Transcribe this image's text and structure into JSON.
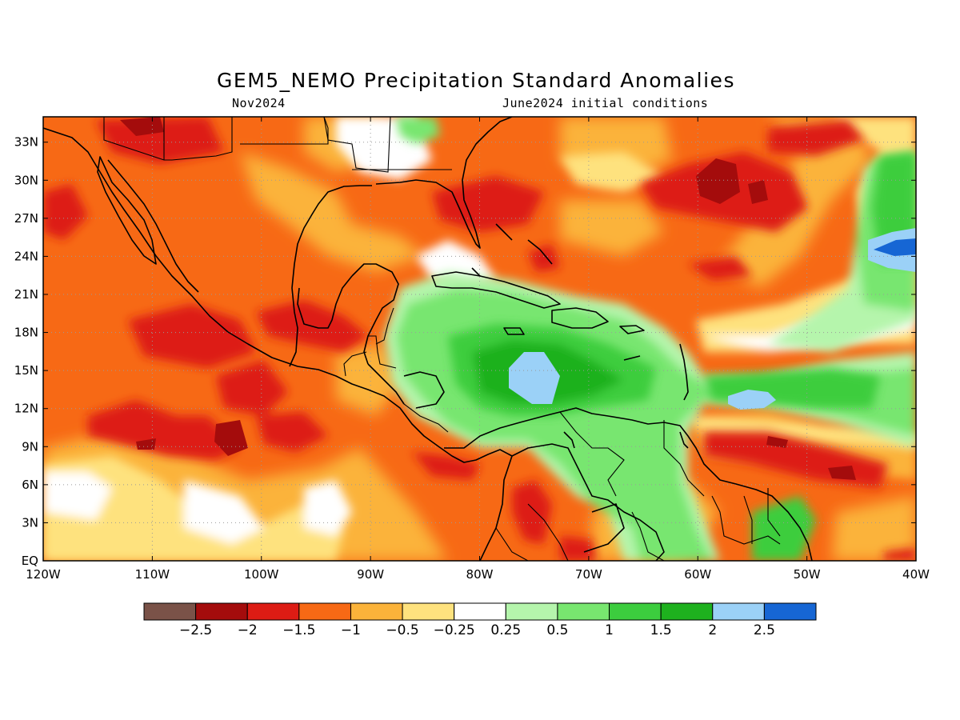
{
  "title": "GEM5_NEMO Precipitation Standard Anomalies",
  "subtitle_left": "Nov2024",
  "subtitle_right": "June2024 initial conditions",
  "map": {
    "lon_range": [
      -120,
      -40
    ],
    "lat_range": [
      0,
      35
    ],
    "lat_ticks": [
      {
        "value": 33,
        "label": "33N"
      },
      {
        "value": 30,
        "label": "30N"
      },
      {
        "value": 27,
        "label": "27N"
      },
      {
        "value": 24,
        "label": "24N"
      },
      {
        "value": 21,
        "label": "21N"
      },
      {
        "value": 18,
        "label": "18N"
      },
      {
        "value": 15,
        "label": "15N"
      },
      {
        "value": 12,
        "label": "12N"
      },
      {
        "value": 9,
        "label": "9N"
      },
      {
        "value": 6,
        "label": "6N"
      },
      {
        "value": 3,
        "label": "3N"
      },
      {
        "value": 0,
        "label": "EQ"
      }
    ],
    "lon_ticks": [
      {
        "value": -120,
        "label": "120W"
      },
      {
        "value": -110,
        "label": "110W"
      },
      {
        "value": -100,
        "label": "100W"
      },
      {
        "value": -90,
        "label": "90W"
      },
      {
        "value": -80,
        "label": "80W"
      },
      {
        "value": -70,
        "label": "70W"
      },
      {
        "value": -60,
        "label": "60W"
      },
      {
        "value": -50,
        "label": "50W"
      },
      {
        "value": -40,
        "label": "40W"
      }
    ]
  },
  "colorbar": {
    "colors": [
      "#7a5248",
      "#a40c0c",
      "#dd1c14",
      "#f76915",
      "#fbb33a",
      "#fee27e",
      "#ffffff",
      "#b5f5ac",
      "#78e66f",
      "#3ccd3e",
      "#1eb11e",
      "#9bd1f7",
      "#1666d4"
    ],
    "labels": [
      "-2.5",
      "-2",
      "-1.5",
      "-1",
      "-0.5",
      "-0.25",
      "0.25",
      "0.5",
      "1",
      "1.5",
      "2",
      "2.5"
    ]
  },
  "anomaly_regions": [
    {
      "category": "wet",
      "level": 1.0,
      "lon": [
        -85,
        -74
      ],
      "lat": [
        5,
        20
      ],
      "color": "#78e66f"
    },
    {
      "category": "wet",
      "level": 1.5,
      "lon": [
        -81,
        -68
      ],
      "lat": [
        11,
        19
      ],
      "color": "#3ccd3e"
    },
    {
      "category": "wet",
      "level": 2.5,
      "lon": [
        -76,
        -73
      ],
      "lat": [
        13,
        15.5
      ],
      "color": "#9bd1f7"
    },
    {
      "category": "wet",
      "level": 1.0,
      "lon": [
        -57,
        -40
      ],
      "lat": [
        11,
        17
      ],
      "color": "#78e66f"
    },
    {
      "category": "wet",
      "level": 2.5,
      "lon": [
        -57,
        -53
      ],
      "lat": [
        12,
        13.5
      ],
      "color": "#9bd1f7"
    },
    {
      "category": "wet",
      "level": 1.0,
      "lon": [
        -49,
        -40
      ],
      "lat": [
        17,
        31
      ],
      "color": "#78e66f"
    },
    {
      "category": "wet",
      "level": 3.0,
      "lon": [
        -44,
        -40
      ],
      "lat": [
        23,
        26
      ],
      "color": "#1666d4"
    },
    {
      "category": "wet",
      "level": 1.0,
      "lon": [
        -63,
        -50
      ],
      "lat": [
        0,
        6
      ],
      "color": "#78e66f"
    },
    {
      "category": "dry",
      "level": -1.5,
      "lon": [
        -68,
        -55
      ],
      "lat": [
        25,
        31
      ],
      "color": "#dd1c14"
    },
    {
      "category": "dry",
      "level": -2.0,
      "lon": [
        -60,
        -56
      ],
      "lat": [
        28,
        30
      ],
      "color": "#a40c0c"
    },
    {
      "category": "dry",
      "level": -1.5,
      "lon": [
        -60,
        -42
      ],
      "lat": [
        6,
        10
      ],
      "color": "#dd1c14"
    },
    {
      "category": "dry",
      "level": -1.5,
      "lon": [
        -110,
        -100
      ],
      "lat": [
        8,
        15
      ],
      "color": "#dd1c14"
    },
    {
      "category": "dry",
      "level": -2.0,
      "lon": [
        -104,
        -100
      ],
      "lat": [
        8.5,
        10.5
      ],
      "color": "#a40c0c"
    },
    {
      "category": "dry",
      "level": -1.5,
      "lon": [
        -100,
        -92
      ],
      "lat": [
        15,
        19
      ],
      "color": "#dd1c14"
    },
    {
      "category": "dry",
      "level": -1.5,
      "lon": [
        -77,
        -73
      ],
      "lat": [
        0,
        6
      ],
      "color": "#dd1c14"
    }
  ]
}
